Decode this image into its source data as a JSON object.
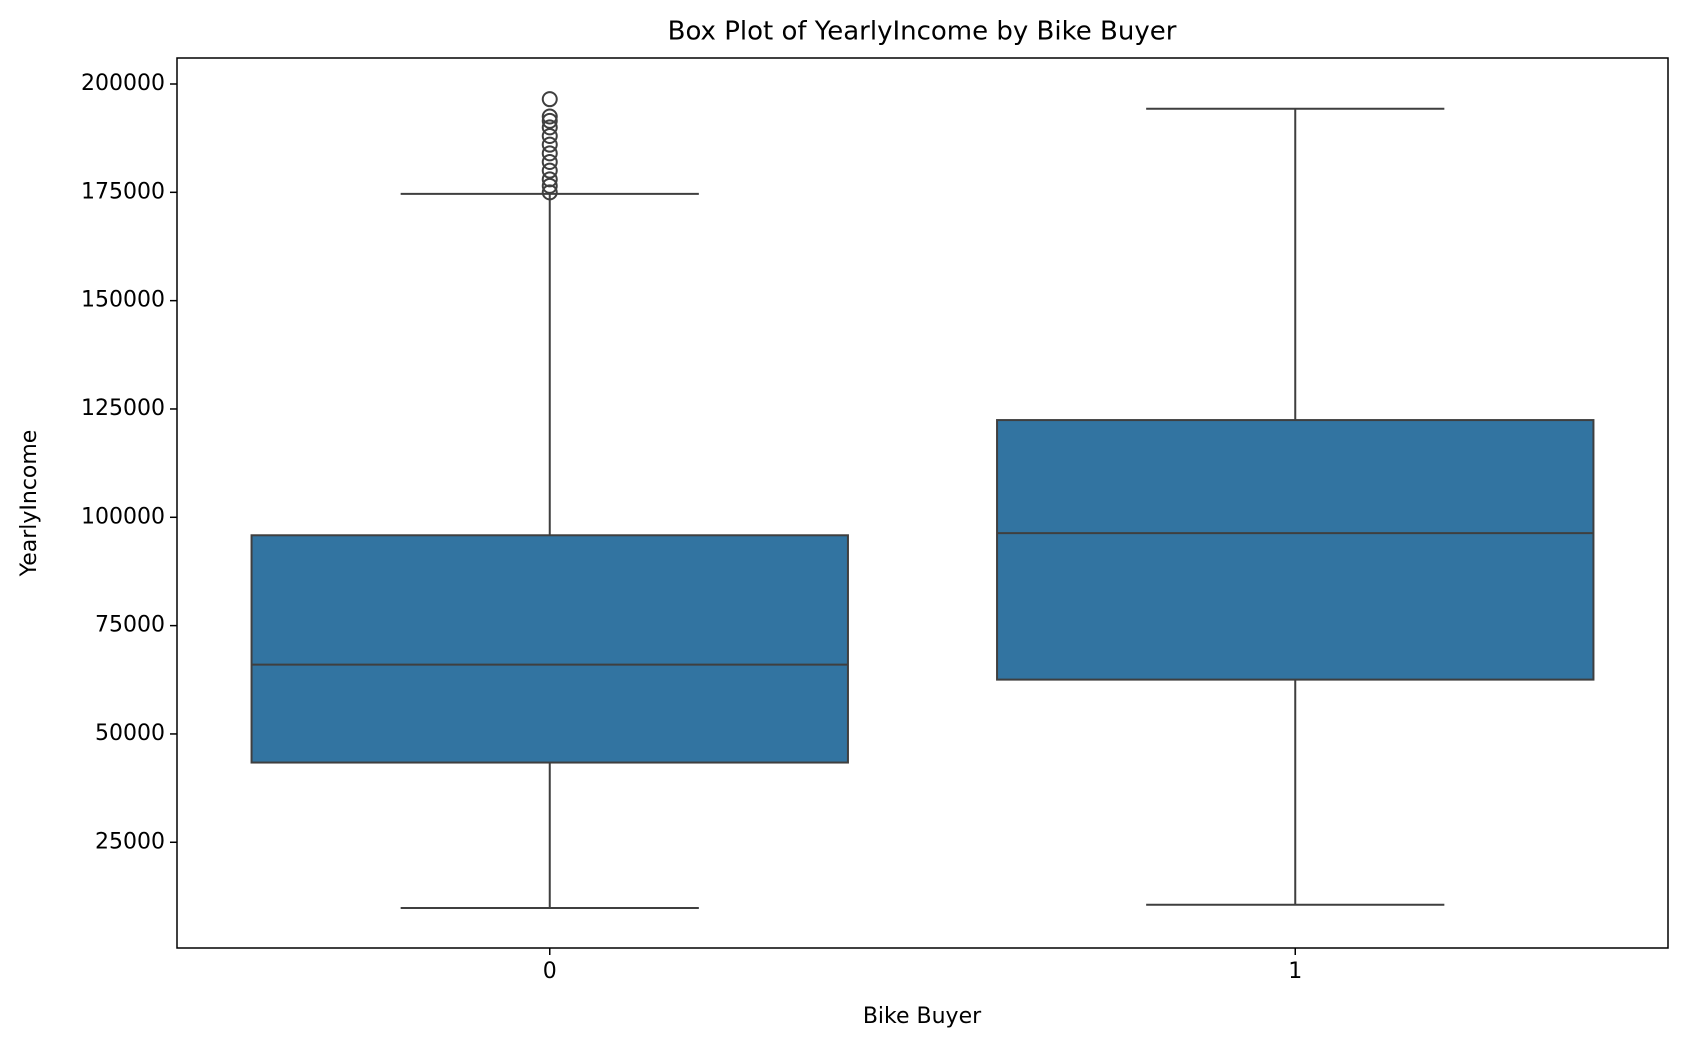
{
  "chart_data": {
    "type": "box",
    "title": "Box Plot of YearlyIncome by Bike Buyer",
    "x_label": "Bike Buyer",
    "y_label": "YearlyIncome",
    "categories": [
      "0",
      "1"
    ],
    "color": "#3274a1",
    "boxes": [
      {
        "whislo": 9840,
        "q1": 43400,
        "med": 66000,
        "q3": 95850,
        "whishi": 174650,
        "fliers": [
          175000,
          176500,
          178000,
          180000,
          182000,
          184000,
          186000,
          188000,
          190000,
          191500,
          192500,
          196500
        ]
      },
      {
        "whislo": 10580,
        "q1": 62540,
        "med": 96350,
        "q3": 122440,
        "whishi": 194300,
        "fliers": []
      }
    ],
    "ylim": [
      600,
      206000
    ],
    "yticks": [
      25000,
      50000,
      75000,
      100000,
      125000,
      150000,
      175000,
      200000
    ]
  }
}
